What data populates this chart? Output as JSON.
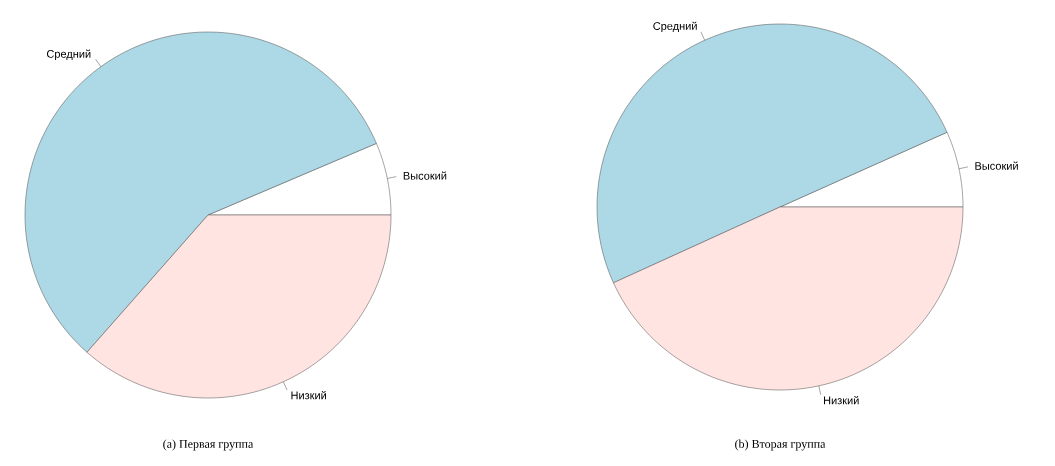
{
  "chart_data": [
    {
      "type": "pie",
      "title": "(a) Первая группа",
      "categories": [
        "Высокий",
        "Средний",
        "Низкий"
      ],
      "values": [
        6.4,
        57.1,
        36.5
      ],
      "colors": [
        "#ffffff",
        "#add8e6",
        "#ffe4e1"
      ]
    },
    {
      "type": "pie",
      "title": "(b) Вторая группа",
      "categories": [
        "Высокий",
        "Средний",
        "Низкий"
      ],
      "values": [
        6.7,
        50.1,
        43.2
      ],
      "colors": [
        "#ffffff",
        "#add8e6",
        "#ffe4e1"
      ]
    }
  ]
}
